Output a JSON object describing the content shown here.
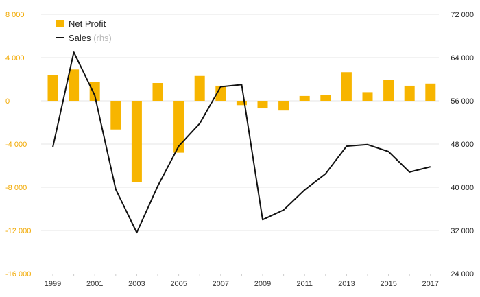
{
  "chart_data": {
    "type": "bar+line",
    "x": [
      "1999",
      "2000",
      "2001",
      "2002",
      "2003",
      "2004",
      "2005",
      "2006",
      "2007",
      "2008",
      "2009",
      "2010",
      "2011",
      "2012",
      "2013",
      "2014",
      "2015",
      "2016",
      "2017"
    ],
    "x_tick_labels": [
      "1999",
      "2001",
      "2003",
      "2005",
      "2007",
      "2009",
      "2011",
      "2013",
      "2015",
      "2017"
    ],
    "series": [
      {
        "name": "Net Profit",
        "type": "bar",
        "axis": "left",
        "color": "#f7b500",
        "values": [
          2400,
          2900,
          1750,
          -2650,
          -7500,
          1650,
          -4800,
          2300,
          1400,
          -400,
          -700,
          -900,
          450,
          550,
          2650,
          800,
          1950,
          1400,
          1600
        ]
      },
      {
        "name": "Sales",
        "name_suffix": "(rhs)",
        "type": "line",
        "axis": "right",
        "color": "#111111",
        "values": [
          47400,
          65000,
          57000,
          39600,
          31600,
          40200,
          47600,
          51800,
          58600,
          59000,
          34000,
          35800,
          39500,
          42500,
          47600,
          47900,
          46600,
          42800,
          43800
        ]
      }
    ],
    "y_left": {
      "min": -16000,
      "max": 8000,
      "ticks": [
        8000,
        4000,
        0,
        -4000,
        -8000,
        -12000,
        -16000
      ],
      "tick_labels": [
        "8 000",
        "4 000",
        "0",
        "-4 000",
        "-8 000",
        "-12 000",
        "-16 000"
      ]
    },
    "y_right": {
      "min": 24000,
      "max": 72000,
      "ticks": [
        72000,
        64000,
        56000,
        48000,
        40000,
        32000,
        24000
      ],
      "tick_labels": [
        "72 000",
        "64 000",
        "56 000",
        "48 000",
        "40 000",
        "32 000",
        "24 000"
      ]
    },
    "legend_position": "top-left",
    "grid": true
  }
}
